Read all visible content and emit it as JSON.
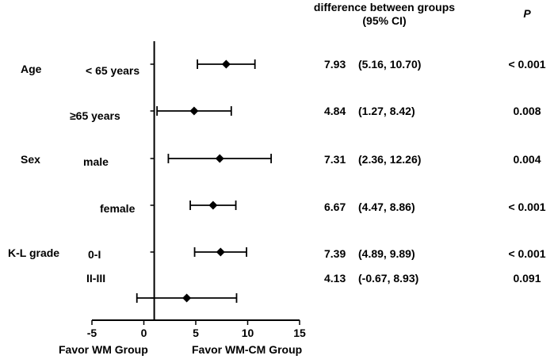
{
  "header": {
    "diff_line1": "difference between groups",
    "diff_line2": "(95% CI)",
    "p_label": "P"
  },
  "groups": [
    {
      "label": "Age"
    },
    {
      "label": "Sex"
    },
    {
      "label": "K-L grade"
    }
  ],
  "chart_data": {
    "type": "forest",
    "x_axis": {
      "min": -5,
      "max": 15,
      "ticks": [
        "-5",
        "0",
        "5",
        "10",
        "15"
      ],
      "reference_line": 1,
      "left_label": "Favor WM Group",
      "right_label": "Favor WM-CM Group"
    },
    "rows": [
      {
        "group": "Age",
        "subgroup": "< 65 years",
        "estimate": 7.93,
        "lower": 5.16,
        "upper": 10.7,
        "est_text": "7.93",
        "ci_text": "(5.16, 10.70)",
        "p": "< 0.001"
      },
      {
        "group": "Age",
        "subgroup": "≥65 years",
        "estimate": 4.84,
        "lower": 1.27,
        "upper": 8.42,
        "est_text": "4.84",
        "ci_text": "(1.27, 8.42)",
        "p": "0.008"
      },
      {
        "group": "Sex",
        "subgroup": "male",
        "estimate": 7.31,
        "lower": 2.36,
        "upper": 12.26,
        "est_text": "7.31",
        "ci_text": "(2.36, 12.26)",
        "p": "0.004"
      },
      {
        "group": "Sex",
        "subgroup": "female",
        "estimate": 6.67,
        "lower": 4.47,
        "upper": 8.86,
        "est_text": "6.67",
        "ci_text": "(4.47, 8.86)",
        "p": "< 0.001"
      },
      {
        "group": "K-L grade",
        "subgroup": "0-I",
        "estimate": 7.39,
        "lower": 4.89,
        "upper": 9.89,
        "est_text": "7.39",
        "ci_text": "(4.89, 9.89)",
        "p": "< 0.001"
      },
      {
        "group": "K-L grade",
        "subgroup": "II-III",
        "estimate": 4.13,
        "lower": -0.67,
        "upper": 8.93,
        "est_text": "4.13",
        "ci_text": "(-0.67, 8.93)",
        "p": "0.091"
      }
    ]
  }
}
